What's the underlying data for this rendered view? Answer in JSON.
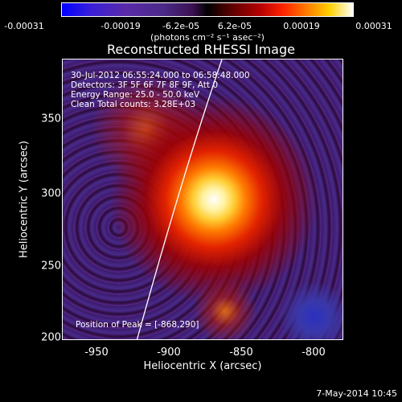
{
  "colorbar": {
    "ticks": [
      "-0.00031",
      "-0.00019",
      "-6.2e-05",
      "6.2e-05",
      "0.00019",
      "0.00031"
    ],
    "units": "(photons cm⁻² s⁻¹ asec⁻²)"
  },
  "title": "Reconstructed RHESSI Image",
  "info": {
    "time": "30-Jul-2012 06:55:24.000 to 06:58:48.000",
    "detectors": "Detectors: 3F 5F 6F 7F 8F 9F, Att 0",
    "energy": "Energy Range: 25.0 - 50.0 keV",
    "clean": "Clean    Total counts: 3.28E+03"
  },
  "peak": "Position of Peak = [-868,290]",
  "axes": {
    "xlabel": "Heliocentric X (arcsec)",
    "ylabel": "Heliocentric Y (arcsec)",
    "xticks": [
      "-950",
      "-900",
      "-850",
      "-800"
    ],
    "yticks": [
      "350",
      "300",
      "250",
      "200"
    ]
  },
  "footer": "7-May-2014 10:45"
}
